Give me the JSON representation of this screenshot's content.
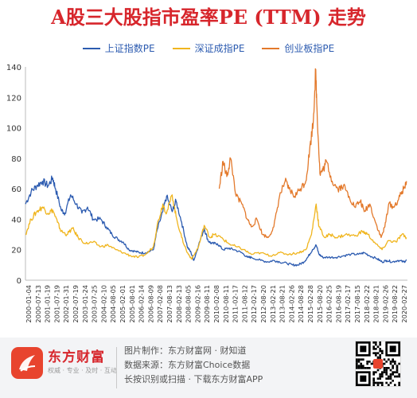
{
  "colors": {
    "shanghai": "#2c5bb0",
    "shenzhen": "#f0b51e",
    "chinext": "#e3792b",
    "title": "#d7262c",
    "logo": "#e8442e"
  },
  "chart_data": {
    "type": "line",
    "title": "A股三大股指市盈率PE (TTM) 走势",
    "ylim": [
      0,
      140
    ],
    "yticks": [
      0,
      20,
      40,
      60,
      80,
      100,
      120,
      140
    ],
    "grid": false,
    "legend_position": "top",
    "x_tick_labels": [
      "2000-01-04",
      "2000-07-13",
      "2001-01-19",
      "2001-07-19",
      "2002-01-31",
      "2002-07-19",
      "2003-01-24",
      "2003-07-25",
      "2004-02-10",
      "2004-08-05",
      "2005-02-01",
      "2005-08-01",
      "2006-02-14",
      "2006-08-09",
      "2007-02-08",
      "2007-08-13",
      "2008-02-13",
      "2008-08-05",
      "2009-02-16",
      "2009-08-11",
      "2010-02-08",
      "2010-08-11",
      "2011-02-17",
      "2011-08-12",
      "2012-02-17",
      "2012-08-20",
      "2013-02-21",
      "2013-08-21",
      "2014-02-26",
      "2014-08-28",
      "2015-02-28",
      "2015-08-20",
      "2016-02-25",
      "2016-08-19",
      "2017-02-17",
      "2017-08-15",
      "2018-02-22",
      "2018-08-21",
      "2019-02-26",
      "2019-08-22",
      "2020-02-27"
    ],
    "series": [
      {
        "name": "上证指数PE",
        "x": [
          2000.0,
          2000.3,
          2000.6,
          2000.9,
          2001.2,
          2001.45,
          2001.6,
          2001.9,
          2002.1,
          2002.4,
          2002.7,
          2003.0,
          2003.3,
          2003.6,
          2004.0,
          2004.3,
          2004.6,
          2004.9,
          2005.2,
          2005.5,
          2005.8,
          2006.1,
          2006.4,
          2006.8,
          2007.0,
          2007.3,
          2007.5,
          2007.8,
          2008.0,
          2008.3,
          2008.6,
          2008.8,
          2008.95,
          2009.2,
          2009.5,
          2009.7,
          2009.9,
          2010.2,
          2010.5,
          2010.8,
          2011.1,
          2011.5,
          2011.8,
          2012.0,
          2012.5,
          2012.9,
          2013.2,
          2013.5,
          2013.9,
          2014.2,
          2014.5,
          2014.8,
          2015.0,
          2015.25,
          2015.45,
          2015.6,
          2015.8,
          2016.1,
          2016.5,
          2016.9,
          2017.3,
          2017.7,
          2018.0,
          2018.3,
          2018.7,
          2018.95,
          2019.2,
          2019.5,
          2019.8,
          2020.1,
          2020.25
        ],
        "values": [
          50,
          58,
          62,
          65,
          62,
          67,
          60,
          46,
          44,
          56,
          50,
          44,
          48,
          40,
          40,
          35,
          30,
          27,
          25,
          20,
          19,
          18,
          18,
          20,
          33,
          45,
          55,
          45,
          52,
          38,
          22,
          18,
          13,
          23,
          34,
          26,
          24,
          24,
          20,
          21,
          20,
          18,
          15,
          15,
          13,
          12,
          13,
          12,
          11,
          10,
          10,
          12,
          15,
          20,
          23,
          17,
          15,
          15,
          15,
          16,
          17,
          17,
          18,
          16,
          14,
          12,
          13,
          12,
          13,
          12,
          13
        ]
      },
      {
        "name": "深证成指PE",
        "x": [
          2000.0,
          2000.3,
          2000.6,
          2000.9,
          2001.2,
          2001.45,
          2001.7,
          2001.9,
          2002.2,
          2002.5,
          2002.8,
          2003.2,
          2003.6,
          2004.0,
          2004.4,
          2004.8,
          2005.2,
          2005.6,
          2006.0,
          2006.4,
          2006.8,
          2007.0,
          2007.3,
          2007.5,
          2007.8,
          2008.0,
          2008.3,
          2008.6,
          2008.85,
          2009.2,
          2009.5,
          2009.8,
          2010.0,
          2010.4,
          2010.8,
          2011.2,
          2011.6,
          2012.0,
          2012.5,
          2013.0,
          2013.5,
          2014.0,
          2014.5,
          2014.9,
          2015.2,
          2015.45,
          2015.6,
          2015.9,
          2016.2,
          2016.6,
          2017.0,
          2017.5,
          2017.9,
          2018.2,
          2018.6,
          2018.95,
          2019.3,
          2019.7,
          2020.0,
          2020.25
        ],
        "values": [
          30,
          40,
          45,
          48,
          44,
          46,
          38,
          32,
          30,
          34,
          28,
          24,
          25,
          22,
          23,
          20,
          18,
          16,
          15,
          17,
          22,
          36,
          50,
          44,
          56,
          42,
          28,
          18,
          14,
          22,
          36,
          28,
          30,
          28,
          24,
          22,
          20,
          17,
          18,
          16,
          18,
          17,
          18,
          20,
          30,
          50,
          35,
          28,
          30,
          28,
          30,
          29,
          32,
          30,
          24,
          20,
          26,
          25,
          30,
          28
        ]
      },
      {
        "name": "创业板指PE",
        "x": [
          2010.3,
          2010.5,
          2010.7,
          2010.9,
          2011.2,
          2011.5,
          2011.8,
          2012.0,
          2012.3,
          2012.6,
          2012.9,
          2013.2,
          2013.5,
          2013.8,
          2014.0,
          2014.3,
          2014.6,
          2014.9,
          2015.1,
          2015.3,
          2015.42,
          2015.5,
          2015.65,
          2015.8,
          2016.0,
          2016.3,
          2016.6,
          2016.9,
          2017.2,
          2017.5,
          2017.8,
          2018.0,
          2018.3,
          2018.6,
          2018.9,
          2019.1,
          2019.3,
          2019.6,
          2019.9,
          2020.1,
          2020.25
        ],
        "values": [
          60,
          78,
          68,
          80,
          55,
          50,
          40,
          35,
          40,
          30,
          28,
          35,
          55,
          65,
          60,
          55,
          60,
          65,
          85,
          105,
          138,
          110,
          70,
          72,
          78,
          65,
          60,
          62,
          55,
          48,
          52,
          45,
          50,
          38,
          28,
          35,
          50,
          48,
          55,
          60,
          65
        ]
      }
    ]
  },
  "footer": {
    "brand_name": "东方财富",
    "slogan": "权威 · 专业 · 及时 · 互动",
    "line1": "图片制作：东方财富网 · 财知道",
    "line2": "数据来源：东方财富Choice数据",
    "line3": "长按识别或扫描 · 下载东方财富APP",
    "qr_icon": "qr-code-icon"
  }
}
